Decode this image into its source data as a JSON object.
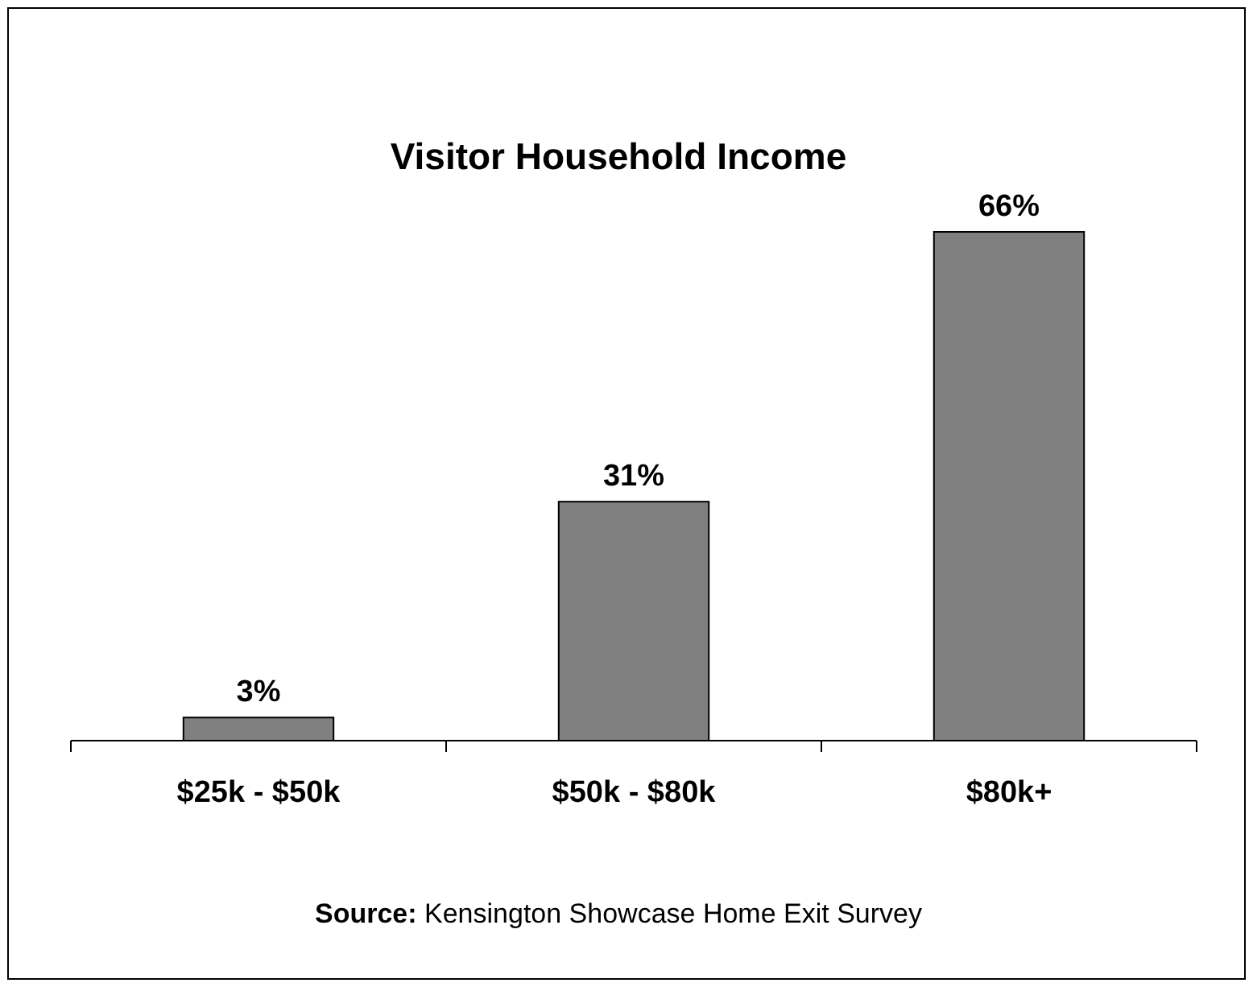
{
  "chart_data": {
    "type": "bar",
    "title": "Visitor Household Income",
    "categories": [
      "$25k - $50k",
      "$50k - $80k",
      "$80k+"
    ],
    "values": [
      3,
      31,
      66
    ],
    "color": "#808080",
    "value_labels": [
      "3%",
      "31%",
      "66%"
    ],
    "annotations": [
      "Source: Kensington Showcase Home Exit Survey"
    ]
  }
}
